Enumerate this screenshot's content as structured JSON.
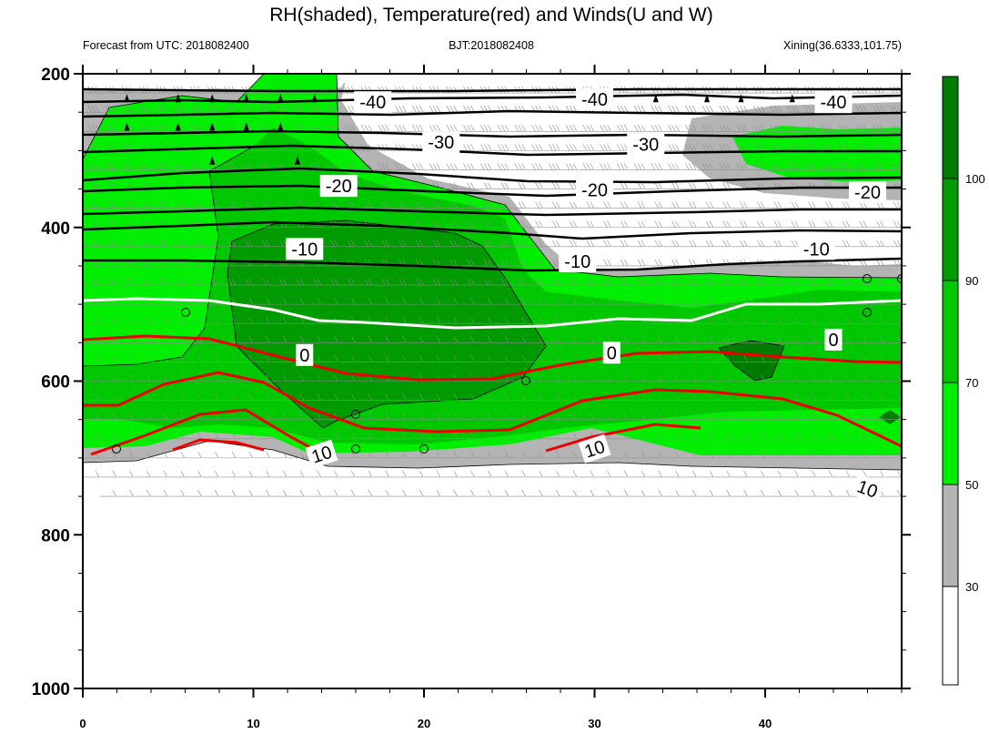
{
  "chart_data": {
    "type": "heatmap",
    "title": "RH(shaded), Temperature(red) and Winds(U and W)",
    "subtitle_left": "Forecast from UTC: 2018082400",
    "subtitle_center": "BJT:2018082408",
    "subtitle_right": "Xining(36.6333,101.75)",
    "x_axis": {
      "range": [
        0,
        48
      ],
      "ticks": [
        0,
        10,
        20,
        30,
        40
      ]
    },
    "y_axis": {
      "range": [
        1000,
        200
      ],
      "inverted": true,
      "ticks": [
        200,
        400,
        600,
        800,
        1000
      ]
    },
    "colorbar": {
      "levels": [
        30,
        50,
        70,
        90,
        100
      ],
      "colors": [
        "#ffffff",
        "#b4b4b4",
        "#00ee00",
        "#00ee00",
        "#00c800",
        "#009b00",
        "#007d00"
      ]
    },
    "temperature_contours": [
      {
        "value": -40,
        "label": "-40",
        "color": "#000000",
        "label_points": [
          [
            17,
            237
          ],
          [
            30,
            233
          ],
          [
            44,
            237
          ]
        ]
      },
      {
        "value": -30,
        "label": "-30",
        "color": "#000000",
        "label_points": [
          [
            21,
            289
          ],
          [
            33,
            292
          ]
        ]
      },
      {
        "value": -20,
        "label": "-20",
        "color": "#000000",
        "label_points": [
          [
            15,
            346
          ],
          [
            30,
            351
          ],
          [
            46,
            354
          ]
        ]
      },
      {
        "value": -10,
        "label": "-10",
        "color": "#000000",
        "label_points": [
          [
            13,
            428
          ],
          [
            29,
            444
          ],
          [
            43,
            428
          ]
        ]
      },
      {
        "value": 0,
        "label": "0",
        "color": "#ffffff",
        "label_points": [
          [
            13,
            566
          ],
          [
            31,
            563
          ],
          [
            44,
            546
          ]
        ]
      },
      {
        "value": 10,
        "label": "10",
        "color": "#ee0000",
        "label_points": [
          [
            14,
            695
          ],
          [
            30,
            688
          ],
          [
            46,
            740
          ]
        ]
      }
    ]
  }
}
